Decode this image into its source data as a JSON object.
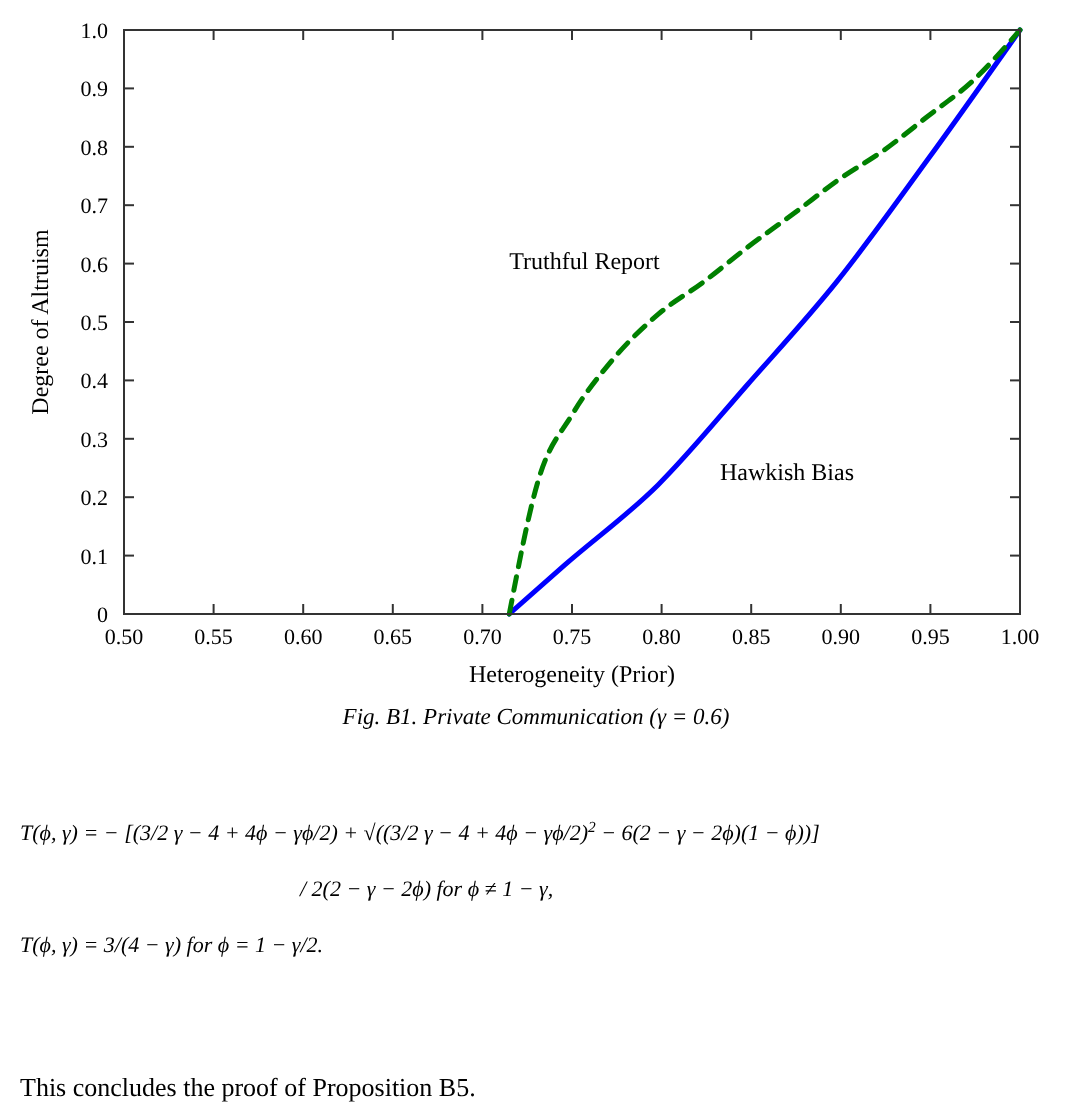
{
  "chart_data": {
    "type": "line",
    "xlabel": "Heterogeneity (Prior)",
    "ylabel": "Degree of Altruism",
    "xlim": [
      0.5,
      1.0
    ],
    "xticks": [
      {
        "value": 0.5,
        "label": "0.50"
      },
      {
        "value": 0.55,
        "label": "0.55"
      },
      {
        "value": 0.6,
        "label": "0.60"
      },
      {
        "value": 0.65,
        "label": "0.65"
      },
      {
        "value": 0.7,
        "label": "0.70"
      },
      {
        "value": 0.75,
        "label": "0.75"
      },
      {
        "value": 0.8,
        "label": "0.80"
      },
      {
        "value": 0.85,
        "label": "0.85"
      },
      {
        "value": 0.9,
        "label": "0.90"
      },
      {
        "value": 0.95,
        "label": "0.95"
      },
      {
        "value": 1.0,
        "label": "1.00"
      }
    ],
    "ylim": [
      0,
      1.0
    ],
    "yticks": [
      0,
      0.1,
      0.2,
      0.3,
      0.4,
      0.5,
      0.6,
      0.7,
      0.8,
      0.9,
      {
        "value": 1.0,
        "label": "1.0"
      }
    ],
    "grid": false,
    "series": [
      {
        "color": "#0000ff",
        "line_style": "solid",
        "x": [
          0.715,
          0.746,
          0.798,
          0.848,
          0.898,
          0.948,
          1.0
        ],
        "values": [
          0,
          0.084,
          0.221,
          0.393,
          0.57,
          0.776,
          1.0
        ]
      },
      {
        "color": "#008000",
        "line_style": "dashed",
        "x": [
          0.715,
          0.731,
          0.75,
          0.772,
          0.798,
          0.824,
          0.848,
          0.876,
          0.898,
          0.924,
          0.948,
          0.974,
          1.0
        ],
        "values": [
          0,
          0.227,
          0.341,
          0.433,
          0.513,
          0.57,
          0.628,
          0.691,
          0.742,
          0.794,
          0.851,
          0.914,
          1.0
        ]
      }
    ],
    "annotations": [
      "Truthful Report",
      "Hawkish Bias",
      "Fig. B1. Private Communication (γ = 0.6)",
      "T(ϕ, γ) = − [(3/2 γ − 4 + 4ϕ − γϕ/2) + √((3/2 γ − 4 + 4ϕ − γϕ/2)$^{2}$ − 6(2 − γ − 2ϕ)(1 − ϕ))]",
      "/ 2(2 − γ − 2ϕ)   for ϕ ≠ 1 − γ,",
      "T(ϕ, γ) = 3/(4 − γ)   for ϕ = 1 − γ/2.",
      "This concludes the proof of Proposition B5."
    ]
  }
}
